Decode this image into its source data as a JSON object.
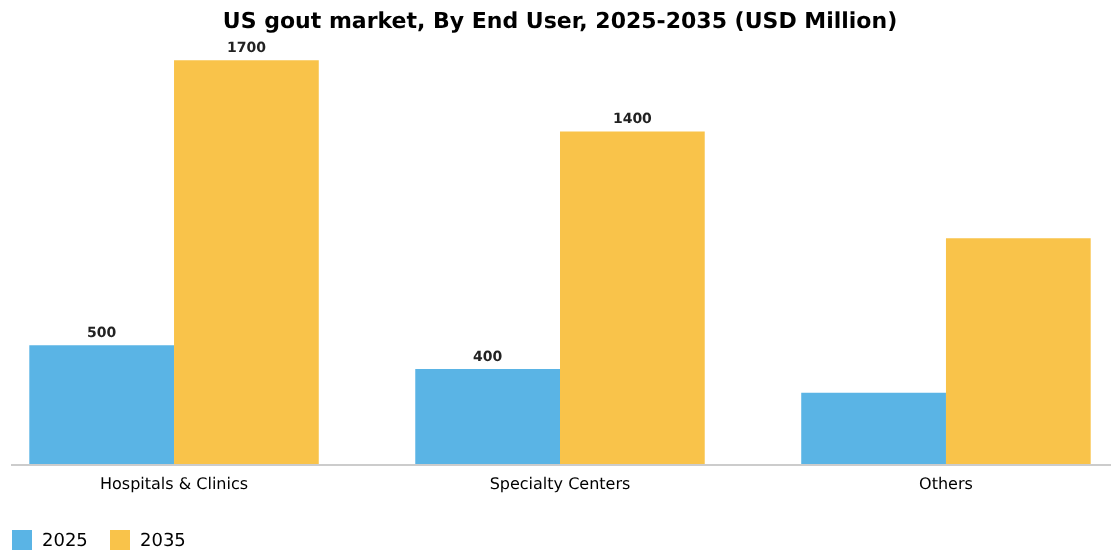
{
  "chart_data": {
    "type": "bar",
    "title": "US gout market, By End User, 2025-2035 (USD Million)",
    "categories": [
      "Hospitals & Clinics",
      "Specialty Centers",
      "Others"
    ],
    "series": [
      {
        "name": "2025",
        "color": "#5ab4e5",
        "values": [
          500,
          400,
          300
        ],
        "value_labels": [
          "500",
          "400",
          null
        ]
      },
      {
        "name": "2035",
        "color": "#f9c34a",
        "values": [
          1700,
          1400,
          950
        ],
        "value_labels": [
          "1700",
          "1400",
          null
        ]
      }
    ],
    "legend": "bottom",
    "grid": false
  }
}
